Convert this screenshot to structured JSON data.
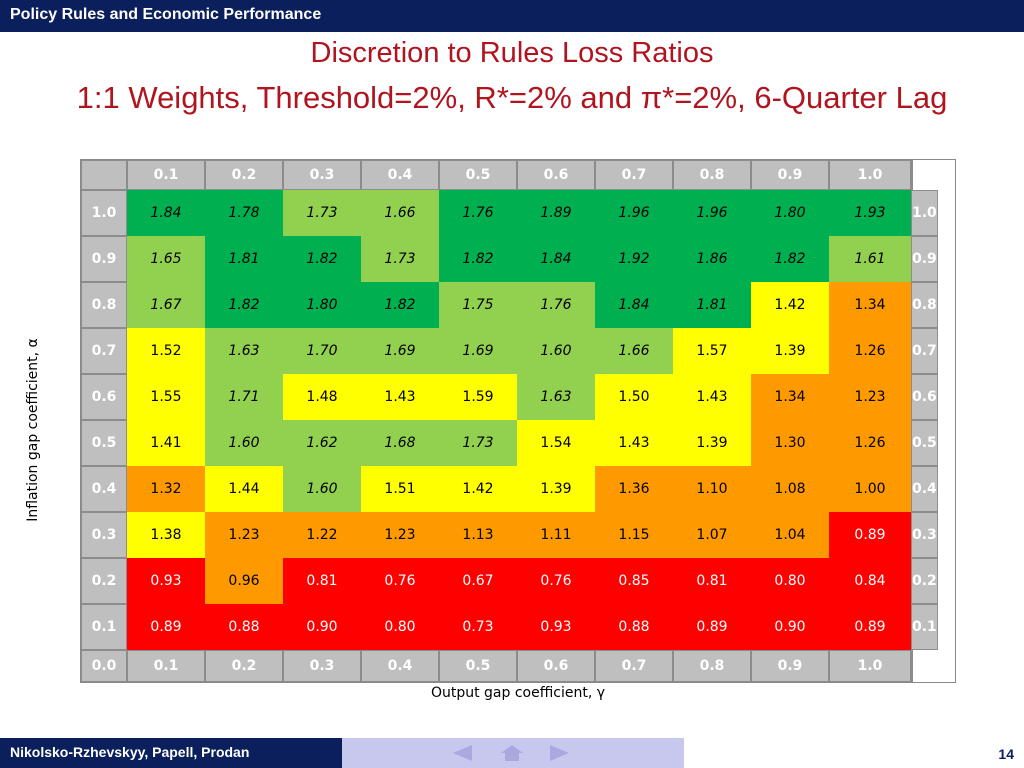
{
  "header": {
    "title": "Policy Rules and Economic Performance"
  },
  "slide": {
    "title_line1": "Discretion to Rules Loss Ratios",
    "title_line2": "1:1 Weights, Threshold=2%, R*=2% and π*=2%, 6-Quarter Lag"
  },
  "chart_data": {
    "type": "heatmap",
    "title": "",
    "xlabel": "Output gap coefficient, γ",
    "ylabel": "Inflation gap coefficient, α",
    "x_categories": [
      "0.1",
      "0.2",
      "0.3",
      "0.4",
      "0.5",
      "0.6",
      "0.7",
      "0.8",
      "0.9",
      "1.0"
    ],
    "y_categories": [
      "1.0",
      "0.9",
      "0.8",
      "0.7",
      "0.6",
      "0.5",
      "0.4",
      "0.3",
      "0.2",
      "0.1"
    ],
    "corner_label": "0.0",
    "values": [
      [
        "1.84",
        "1.78",
        "1.73",
        "1.66",
        "1.76",
        "1.89",
        "1.96",
        "1.96",
        "1.80",
        "1.93"
      ],
      [
        "1.65",
        "1.81",
        "1.82",
        "1.73",
        "1.82",
        "1.84",
        "1.92",
        "1.86",
        "1.82",
        "1.61"
      ],
      [
        "1.67",
        "1.82",
        "1.80",
        "1.82",
        "1.75",
        "1.76",
        "1.84",
        "1.81",
        "1.42",
        "1.34"
      ],
      [
        "1.52",
        "1.63",
        "1.70",
        "1.69",
        "1.69",
        "1.60",
        "1.66",
        "1.57",
        "1.39",
        "1.26"
      ],
      [
        "1.55",
        "1.71",
        "1.48",
        "1.43",
        "1.59",
        "1.63",
        "1.50",
        "1.43",
        "1.34",
        "1.23"
      ],
      [
        "1.41",
        "1.60",
        "1.62",
        "1.68",
        "1.73",
        "1.54",
        "1.43",
        "1.39",
        "1.30",
        "1.26"
      ],
      [
        "1.32",
        "1.44",
        "1.60",
        "1.51",
        "1.42",
        "1.39",
        "1.36",
        "1.10",
        "1.08",
        "1.00"
      ],
      [
        "1.38",
        "1.23",
        "1.22",
        "1.23",
        "1.13",
        "1.11",
        "1.15",
        "1.07",
        "1.04",
        "0.89"
      ],
      [
        "0.93",
        "0.96",
        "0.81",
        "0.76",
        "0.67",
        "0.76",
        "0.85",
        "0.81",
        "0.80",
        "0.84"
      ],
      [
        "0.89",
        "0.88",
        "0.90",
        "0.80",
        "0.73",
        "0.93",
        "0.88",
        "0.89",
        "0.90",
        "0.89"
      ]
    ],
    "cell_colors": [
      [
        "G",
        "G",
        "L",
        "L",
        "G",
        "G",
        "G",
        "G",
        "G",
        "G"
      ],
      [
        "L",
        "G",
        "G",
        "L",
        "G",
        "G",
        "G",
        "G",
        "G",
        "L"
      ],
      [
        "L",
        "G",
        "G",
        "G",
        "L",
        "L",
        "G",
        "G",
        "Y",
        "O"
      ],
      [
        "Y",
        "L",
        "L",
        "L",
        "L",
        "L",
        "L",
        "Y",
        "Y",
        "O"
      ],
      [
        "Y",
        "L",
        "Y",
        "Y",
        "Y",
        "L",
        "Y",
        "Y",
        "O",
        "O"
      ],
      [
        "Y",
        "L",
        "L",
        "L",
        "L",
        "Y",
        "Y",
        "Y",
        "O",
        "O"
      ],
      [
        "O",
        "Y",
        "L",
        "Y",
        "Y",
        "Y",
        "O",
        "O",
        "O",
        "O"
      ],
      [
        "Y",
        "O",
        "O",
        "O",
        "O",
        "O",
        "O",
        "O",
        "O",
        "R"
      ],
      [
        "R",
        "O",
        "R",
        "R",
        "R",
        "R",
        "R",
        "R",
        "R",
        "R"
      ],
      [
        "R",
        "R",
        "R",
        "R",
        "R",
        "R",
        "R",
        "R",
        "R",
        "R"
      ]
    ],
    "palette": {
      "G": "#00b050",
      "L": "#92d050",
      "Y": "#ffff00",
      "O": "#ff9900",
      "R": "#ff0000",
      "header": "#bfbfbf"
    }
  },
  "footer": {
    "authors": "Nikolsko-Rzhevskyy, Papell, Prodan",
    "page_number": "14"
  },
  "nav": {
    "icons": [
      "arrow-left-icon",
      "home-icon",
      "arrow-right-icon"
    ]
  }
}
